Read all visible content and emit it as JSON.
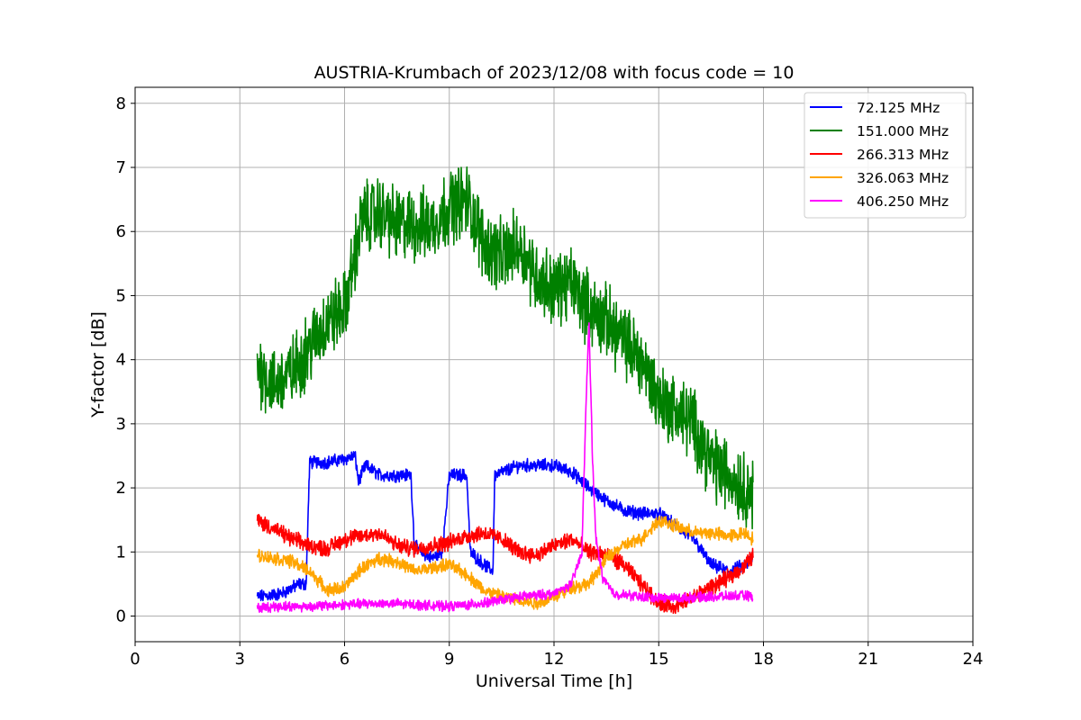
{
  "chart_data": {
    "type": "line",
    "title": "AUSTRIA-Krumbach of 2023/12/08 with focus code = 10",
    "xlabel": "Universal Time [h]",
    "ylabel": "Y-factor [dB]",
    "xlim": [
      0,
      24
    ],
    "ylim": [
      -0.4,
      8.25
    ],
    "xticks": [
      0,
      3,
      6,
      9,
      12,
      15,
      18,
      21,
      24
    ],
    "yticks": [
      0,
      1,
      2,
      3,
      4,
      5,
      6,
      7,
      8
    ],
    "grid": true,
    "legend_position": "top-right",
    "series": [
      {
        "name": "72.125 MHz",
        "color": "#0000ff",
        "noise": 0.08,
        "points": [
          [
            3.5,
            0.3
          ],
          [
            4.2,
            0.35
          ],
          [
            4.7,
            0.5
          ],
          [
            4.9,
            0.5
          ],
          [
            5.0,
            2.4
          ],
          [
            5.5,
            2.4
          ],
          [
            6.0,
            2.45
          ],
          [
            6.3,
            2.5
          ],
          [
            6.4,
            2.1
          ],
          [
            6.6,
            2.35
          ],
          [
            7.0,
            2.2
          ],
          [
            7.5,
            2.2
          ],
          [
            7.9,
            2.2
          ],
          [
            8.0,
            1.1
          ],
          [
            8.2,
            1.0
          ],
          [
            8.5,
            0.9
          ],
          [
            8.8,
            1.0
          ],
          [
            9.0,
            2.2
          ],
          [
            9.5,
            2.2
          ],
          [
            9.6,
            1.0
          ],
          [
            10.0,
            0.8
          ],
          [
            10.25,
            0.7
          ],
          [
            10.3,
            2.2
          ],
          [
            11.0,
            2.35
          ],
          [
            11.5,
            2.35
          ],
          [
            12.0,
            2.35
          ],
          [
            12.5,
            2.25
          ],
          [
            13.0,
            2.0
          ],
          [
            13.5,
            1.8
          ],
          [
            14.0,
            1.65
          ],
          [
            14.5,
            1.6
          ],
          [
            15.0,
            1.6
          ],
          [
            15.5,
            1.4
          ],
          [
            16.0,
            1.2
          ],
          [
            16.5,
            0.8
          ],
          [
            17.0,
            0.7
          ],
          [
            17.5,
            0.8
          ],
          [
            17.7,
            0.9
          ]
        ]
      },
      {
        "name": "151.000 MHz",
        "color": "#008000",
        "noise": 0.45,
        "points": [
          [
            3.5,
            3.9
          ],
          [
            4.0,
            3.6
          ],
          [
            4.5,
            3.8
          ],
          [
            5.0,
            4.2
          ],
          [
            5.5,
            4.6
          ],
          [
            6.0,
            4.8
          ],
          [
            6.5,
            6.2
          ],
          [
            7.0,
            6.3
          ],
          [
            7.5,
            6.1
          ],
          [
            8.0,
            6.1
          ],
          [
            8.5,
            6.1
          ],
          [
            9.0,
            6.4
          ],
          [
            9.5,
            6.5
          ],
          [
            10.0,
            5.8
          ],
          [
            10.5,
            5.6
          ],
          [
            11.0,
            5.8
          ],
          [
            11.5,
            5.3
          ],
          [
            12.0,
            5.1
          ],
          [
            12.5,
            5.2
          ],
          [
            13.0,
            4.8
          ],
          [
            13.5,
            4.6
          ],
          [
            14.0,
            4.3
          ],
          [
            14.5,
            4.0
          ],
          [
            15.0,
            3.4
          ],
          [
            15.5,
            3.2
          ],
          [
            16.0,
            3.0
          ],
          [
            16.5,
            2.4
          ],
          [
            17.0,
            2.2
          ],
          [
            17.5,
            2.0
          ],
          [
            17.7,
            1.9
          ]
        ]
      },
      {
        "name": "266.313 MHz",
        "color": "#ff0000",
        "noise": 0.1,
        "points": [
          [
            3.5,
            1.5
          ],
          [
            4.0,
            1.35
          ],
          [
            4.5,
            1.2
          ],
          [
            5.0,
            1.1
          ],
          [
            5.5,
            1.05
          ],
          [
            6.0,
            1.2
          ],
          [
            6.5,
            1.25
          ],
          [
            7.0,
            1.3
          ],
          [
            7.5,
            1.1
          ],
          [
            8.0,
            1.05
          ],
          [
            8.5,
            1.1
          ],
          [
            9.0,
            1.15
          ],
          [
            9.5,
            1.25
          ],
          [
            10.0,
            1.3
          ],
          [
            10.5,
            1.2
          ],
          [
            11.0,
            1.0
          ],
          [
            11.5,
            0.95
          ],
          [
            12.0,
            1.1
          ],
          [
            12.5,
            1.2
          ],
          [
            13.0,
            1.0
          ],
          [
            13.5,
            0.95
          ],
          [
            14.0,
            0.8
          ],
          [
            14.5,
            0.5
          ],
          [
            15.0,
            0.2
          ],
          [
            15.5,
            0.15
          ],
          [
            16.0,
            0.3
          ],
          [
            16.5,
            0.45
          ],
          [
            17.0,
            0.6
          ],
          [
            17.5,
            0.8
          ],
          [
            17.7,
            0.95
          ]
        ]
      },
      {
        "name": "326.063 MHz",
        "color": "#ffa500",
        "noise": 0.08,
        "points": [
          [
            3.5,
            0.95
          ],
          [
            4.0,
            0.9
          ],
          [
            4.5,
            0.85
          ],
          [
            5.0,
            0.7
          ],
          [
            5.5,
            0.4
          ],
          [
            6.0,
            0.45
          ],
          [
            6.5,
            0.75
          ],
          [
            7.0,
            0.9
          ],
          [
            7.5,
            0.85
          ],
          [
            8.0,
            0.7
          ],
          [
            8.5,
            0.75
          ],
          [
            9.0,
            0.8
          ],
          [
            9.5,
            0.65
          ],
          [
            10.0,
            0.4
          ],
          [
            10.5,
            0.3
          ],
          [
            11.0,
            0.25
          ],
          [
            11.5,
            0.2
          ],
          [
            12.0,
            0.3
          ],
          [
            12.5,
            0.45
          ],
          [
            13.0,
            0.5
          ],
          [
            13.5,
            0.9
          ],
          [
            14.0,
            1.1
          ],
          [
            14.5,
            1.2
          ],
          [
            15.0,
            1.5
          ],
          [
            15.5,
            1.4
          ],
          [
            16.0,
            1.3
          ],
          [
            16.5,
            1.3
          ],
          [
            17.0,
            1.25
          ],
          [
            17.5,
            1.3
          ],
          [
            17.7,
            1.2
          ]
        ]
      },
      {
        "name": "406.250 MHz",
        "color": "#ff00ff",
        "noise": 0.06,
        "points": [
          [
            3.5,
            0.12
          ],
          [
            4.0,
            0.15
          ],
          [
            5.0,
            0.15
          ],
          [
            6.0,
            0.18
          ],
          [
            7.0,
            0.2
          ],
          [
            8.0,
            0.18
          ],
          [
            9.0,
            0.15
          ],
          [
            10.0,
            0.2
          ],
          [
            11.0,
            0.3
          ],
          [
            12.0,
            0.35
          ],
          [
            12.5,
            0.5
          ],
          [
            12.8,
            1.0
          ],
          [
            12.9,
            3.0
          ],
          [
            13.0,
            4.6
          ],
          [
            13.1,
            2.5
          ],
          [
            13.2,
            1.2
          ],
          [
            13.4,
            0.6
          ],
          [
            13.7,
            0.35
          ],
          [
            14.5,
            0.3
          ],
          [
            15.5,
            0.28
          ],
          [
            16.5,
            0.3
          ],
          [
            17.5,
            0.32
          ],
          [
            17.7,
            0.3
          ]
        ]
      }
    ]
  }
}
